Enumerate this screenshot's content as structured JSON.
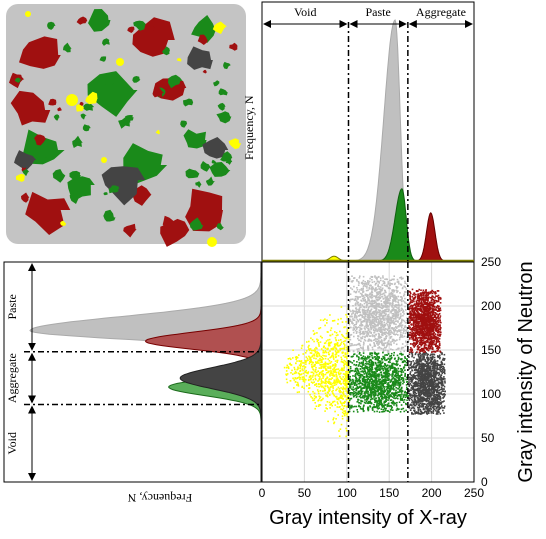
{
  "colors": {
    "void": "#ffff00",
    "paste": "#c0c0c0",
    "paste_dark": "#9a9a9a",
    "aggregate": "#444444",
    "red_phase": "#a01010",
    "green_phase": "#1a8a1a",
    "axis": "#000000"
  },
  "top_histogram": {
    "ylabel": "Frequency, N",
    "regions": [
      {
        "label": "Void",
        "x_from": 0,
        "x_to": 102
      },
      {
        "label": "Paste",
        "x_from": 102,
        "x_to": 172
      },
      {
        "label": "Aggregate",
        "x_from": 172,
        "x_to": 250
      }
    ]
  },
  "left_histogram": {
    "xlabel": "Frequency, N",
    "regions": [
      {
        "label": "Void",
        "y_from": 0,
        "y_to": 88
      },
      {
        "label": "Aggregate",
        "y_from": 88,
        "y_to": 148
      },
      {
        "label": "Paste",
        "y_from": 148,
        "y_to": 250
      }
    ]
  },
  "chart_data": {
    "type": "scatter",
    "title": "",
    "xlabel": "Gray intensity of X-ray",
    "ylabel": "Gray intensity of Neutron",
    "xlim": [
      0,
      250
    ],
    "ylim": [
      0,
      250
    ],
    "xticks": [
      0,
      50,
      100,
      150,
      200,
      250
    ],
    "yticks": [
      0,
      50,
      100,
      150,
      200,
      250
    ],
    "grid": true,
    "thresholds_x": [
      102,
      172
    ],
    "thresholds_y": [
      88,
      148
    ],
    "clusters": [
      {
        "phase": "void",
        "color": "yellow",
        "x_range": [
          25,
          102
        ],
        "y_range": [
          48,
          205
        ]
      },
      {
        "phase": "paste",
        "color": "lightgray",
        "x_range": [
          102,
          172
        ],
        "y_range": [
          148,
          235
        ]
      },
      {
        "phase": "aggregate",
        "color": "darkgray",
        "x_range": [
          172,
          215
        ],
        "y_range": [
          78,
          148
        ]
      },
      {
        "phase": "red",
        "color": "darkred",
        "x_range": [
          172,
          210
        ],
        "y_range": [
          148,
          220
        ]
      },
      {
        "phase": "green",
        "color": "green",
        "x_range": [
          102,
          172
        ],
        "y_range": [
          80,
          148
        ]
      }
    ],
    "top_histogram_peaks": [
      {
        "phase": "paste",
        "x": 157,
        "relative_height": 1.0
      },
      {
        "phase": "green",
        "x": 165,
        "relative_height": 0.3
      },
      {
        "phase": "red",
        "x": 199,
        "relative_height": 0.2
      },
      {
        "phase": "void",
        "x": 85,
        "relative_height": 0.02
      }
    ],
    "left_histogram_peaks": [
      {
        "phase": "paste",
        "y": 172,
        "relative_height": 1.0
      },
      {
        "phase": "red",
        "y": 160,
        "relative_height": 0.5
      },
      {
        "phase": "green",
        "y": 108,
        "relative_height": 0.4
      },
      {
        "phase": "aggregate",
        "y": 118,
        "relative_height": 0.35
      }
    ]
  }
}
